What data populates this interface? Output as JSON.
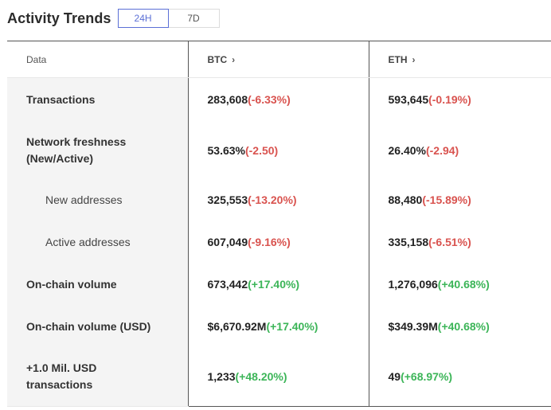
{
  "header": {
    "title": "Activity Trends",
    "tabs": [
      {
        "label": "24H",
        "active": true
      },
      {
        "label": "7D",
        "active": false
      }
    ]
  },
  "table": {
    "columns": {
      "data": "Data",
      "btc": "BTC",
      "eth": "ETH",
      "chevron": "›"
    },
    "rows": [
      {
        "label": "Transactions",
        "btc_value": "283,608",
        "btc_change": "(-6.33%)",
        "eth_value": "593,645",
        "eth_change": "(-0.19%)"
      },
      {
        "label": "Network freshness (New/Active)",
        "btc_value": "53.63%",
        "btc_change": "(-2.50)",
        "eth_value": "26.40%",
        "eth_change": "(-2.94)"
      },
      {
        "label": "New addresses",
        "btc_value": "325,553",
        "btc_change": "(-13.20%)",
        "eth_value": "88,480",
        "eth_change": "(-15.89%)"
      },
      {
        "label": "Active addresses",
        "btc_value": "607,049",
        "btc_change": "(-9.16%)",
        "eth_value": "335,158",
        "eth_change": "(-6.51%)"
      },
      {
        "label": "On-chain volume",
        "btc_value": "673,442",
        "btc_change": "(+17.40%)",
        "eth_value": "1,276,096",
        "eth_change": "(+40.68%)"
      },
      {
        "label": "On-chain volume (USD)",
        "btc_value": "$6,670.92M",
        "btc_change": "(+17.40%)",
        "eth_value": "$349.39M",
        "eth_change": "(+40.68%)"
      },
      {
        "label": "+1.0 Mil. USD transactions",
        "btc_value": "1,233",
        "btc_change": "(+48.20%)",
        "eth_value": "49",
        "eth_change": "(+68.97%)"
      }
    ]
  },
  "colors": {
    "negative": "#d9534f",
    "positive": "#3cb558",
    "accent": "#5b6fd6"
  }
}
